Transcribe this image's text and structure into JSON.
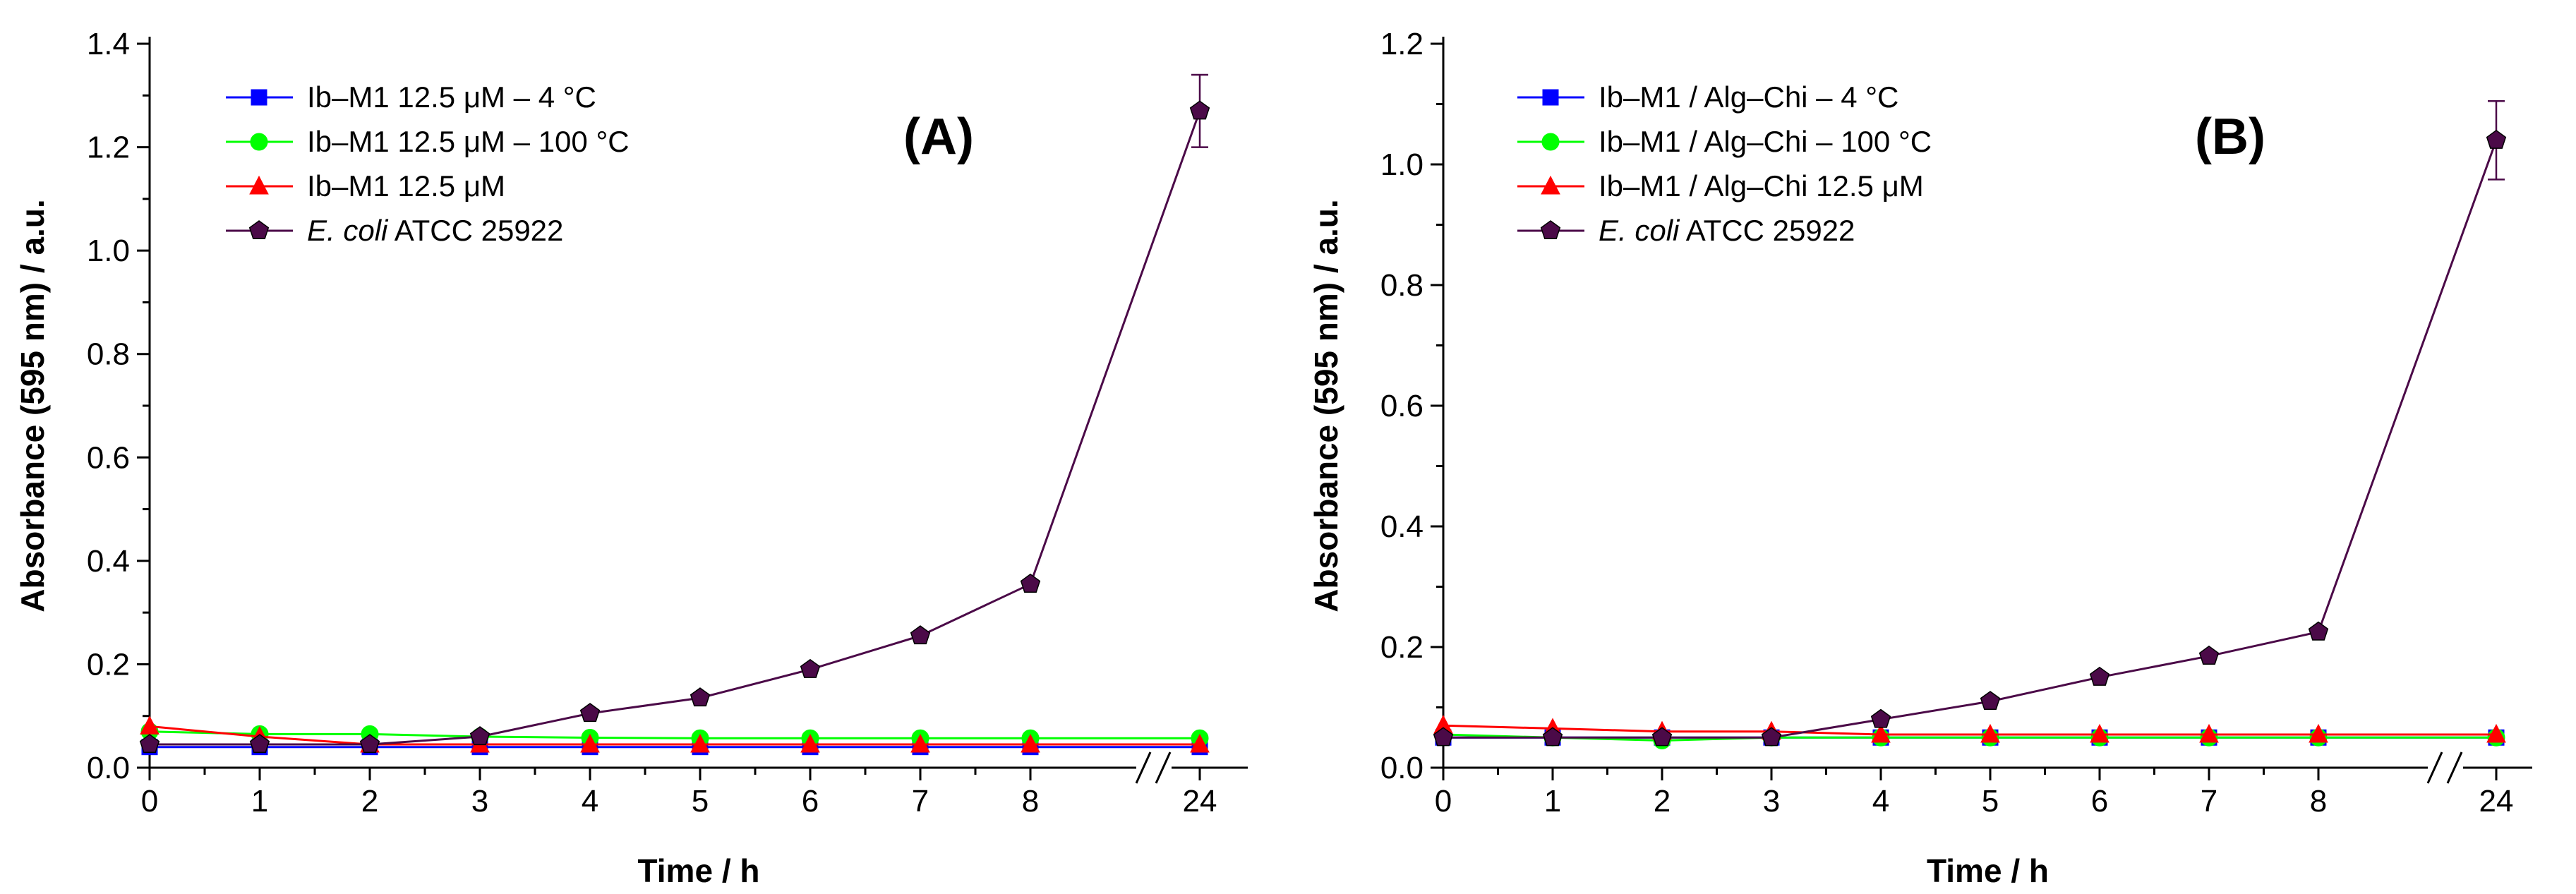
{
  "chart_data": [
    {
      "type": "line",
      "panel_label": "(A)",
      "xlabel": "Time / h",
      "ylabel": "Absorbance (595 nm) / a.u.",
      "x_tick_labels": [
        "0",
        "1",
        "2",
        "3",
        "4",
        "5",
        "6",
        "7",
        "8",
        "24"
      ],
      "y_tick_labels": [
        "0.0",
        "0.2",
        "0.4",
        "0.6",
        "0.8",
        "1.0",
        "1.2",
        "1.4"
      ],
      "ylim": [
        0,
        1.4
      ],
      "axis_break_between": [
        8,
        24
      ],
      "x": [
        0,
        1,
        2,
        3,
        4,
        5,
        6,
        7,
        8,
        24
      ],
      "legend_position": "top-left",
      "series": [
        {
          "name": "Ib–M1 12.5 μM – 4 °C",
          "color": "#0000ff",
          "marker": "square",
          "values": [
            0.04,
            0.04,
            0.04,
            0.04,
            0.04,
            0.04,
            0.04,
            0.04,
            0.04,
            0.04
          ]
        },
        {
          "name": "Ib–M1 12.5 μM – 100 °C",
          "color": "#00ff00",
          "marker": "circle",
          "values": [
            0.07,
            0.065,
            0.065,
            0.06,
            0.058,
            0.057,
            0.057,
            0.057,
            0.057,
            0.057
          ]
        },
        {
          "name": "Ib–M1 12.5 μM",
          "color": "#ff0000",
          "marker": "triangle",
          "values": [
            0.08,
            0.06,
            0.045,
            0.045,
            0.045,
            0.045,
            0.045,
            0.045,
            0.045,
            0.045
          ]
        },
        {
          "name": "E. coli ATCC 25922",
          "name_italic": "E. coli",
          "name_rest": " ATCC 25922",
          "color": "#4b0a48",
          "marker": "pentagon",
          "values": [
            0.045,
            0.045,
            0.045,
            0.06,
            0.105,
            0.135,
            0.19,
            0.255,
            0.355,
            1.27
          ],
          "error_last": 0.07
        }
      ]
    },
    {
      "type": "line",
      "panel_label": "(B)",
      "xlabel": "Time / h",
      "ylabel": "Absorbance (595 nm) / a.u.",
      "x_tick_labels": [
        "0",
        "1",
        "2",
        "3",
        "4",
        "5",
        "6",
        "7",
        "8",
        "24"
      ],
      "y_tick_labels": [
        "0.0",
        "0.2",
        "0.4",
        "0.6",
        "0.8",
        "1.0",
        "1.2"
      ],
      "ylim": [
        0,
        1.2
      ],
      "axis_break_between": [
        8,
        24
      ],
      "x": [
        0,
        1,
        2,
        3,
        4,
        5,
        6,
        7,
        8,
        24
      ],
      "legend_position": "top-left",
      "series": [
        {
          "name": "Ib–M1 / Alg–Chi – 4 °C",
          "color": "#0000ff",
          "marker": "square",
          "values": [
            0.05,
            0.05,
            0.05,
            0.05,
            0.05,
            0.05,
            0.05,
            0.05,
            0.05,
            0.05
          ]
        },
        {
          "name": "Ib–M1 / Alg–Chi – 100 °C",
          "color": "#00ff00",
          "marker": "circle",
          "values": [
            0.055,
            0.05,
            0.045,
            0.05,
            0.05,
            0.05,
            0.05,
            0.05,
            0.05,
            0.05
          ]
        },
        {
          "name": "Ib–M1 / Alg–Chi 12.5 μM",
          "color": "#ff0000",
          "marker": "triangle",
          "values": [
            0.07,
            0.065,
            0.06,
            0.06,
            0.055,
            0.055,
            0.055,
            0.055,
            0.055,
            0.055
          ]
        },
        {
          "name": "E. coli ATCC 25922",
          "name_italic": "E. coli",
          "name_rest": " ATCC 25922",
          "color": "#4b0a48",
          "marker": "pentagon",
          "values": [
            0.05,
            0.05,
            0.05,
            0.05,
            0.08,
            0.11,
            0.15,
            0.185,
            0.225,
            1.04
          ],
          "error_last": 0.065
        }
      ]
    }
  ]
}
